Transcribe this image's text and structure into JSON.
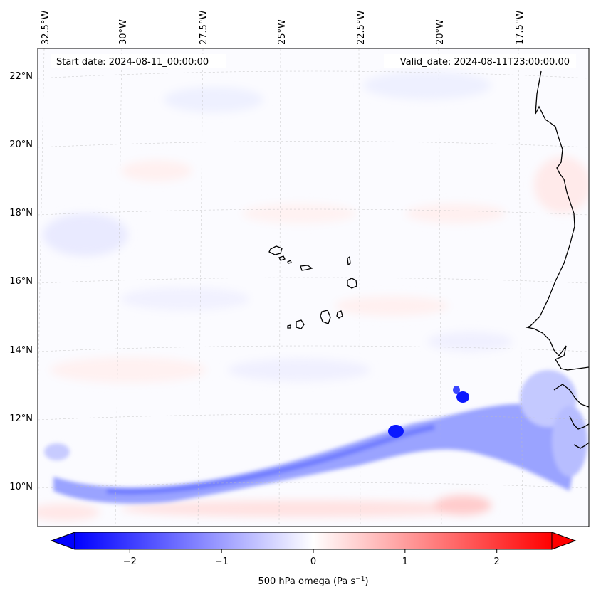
{
  "map": {
    "start_date": "Start date: 2024-08-11_00:00:00",
    "valid_date": "Valid_date: 2024-08-11T23:00:00.00",
    "lon_ticks": [
      "32.5°W",
      "30°W",
      "27.5°W",
      "25°W",
      "22.5°W",
      "20°W",
      "17.5°W"
    ],
    "lat_ticks": [
      "22°N",
      "20°N",
      "18°N",
      "16°N",
      "14°N",
      "12°N",
      "10°N"
    ],
    "gridlines": true,
    "features": [
      "coastline",
      "Cape Verde islands",
      "omega field"
    ]
  },
  "colorbar": {
    "ticks": [
      "−2",
      "−1",
      "0",
      "1",
      "2"
    ],
    "values": [
      -2,
      -1,
      0,
      1,
      2
    ],
    "range": [
      -2.6,
      2.6
    ],
    "colormap": "bwr",
    "extend": "both",
    "label_main": "500 hPa omega (Pa s",
    "label_sup": "−1",
    "label_end": ")"
  },
  "colors": {
    "ascent": "#0000ff",
    "neutral": "#ffffff",
    "descent": "#ff0000"
  }
}
